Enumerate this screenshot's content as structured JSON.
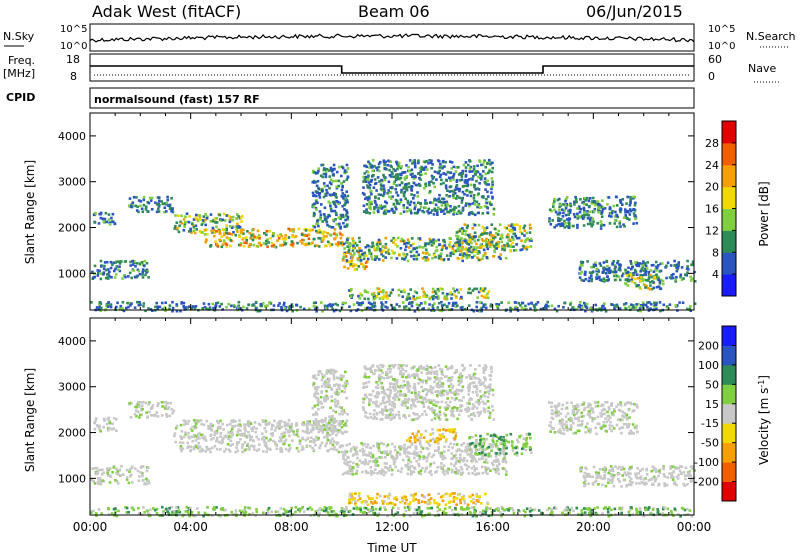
{
  "header": {
    "station": "Adak West (fitACF)",
    "beam": "Beam 06",
    "date": "06/Jun/2015"
  },
  "panels": {
    "nsky": {
      "label": "N.Sky",
      "right_label": "N.Search",
      "ticks_left": [
        "10^5",
        "10^0"
      ],
      "ticks_right": [
        "10^5",
        "10^0"
      ]
    },
    "freq": {
      "label": "Freq.",
      "unit": "[MHz]",
      "right_label": "Nave",
      "ticks_left": [
        "18",
        "8"
      ],
      "ticks_right": [
        "60",
        "0"
      ],
      "freq_steps": [
        {
          "t0": 0,
          "t1": 10,
          "level": "high"
        },
        {
          "t0": 10,
          "t1": 18,
          "level": "low"
        },
        {
          "t0": 18,
          "t1": 24,
          "level": "high"
        }
      ]
    },
    "cpid": {
      "label": "CPID",
      "text": "normalsound (fast) 157 RF"
    }
  },
  "chart_data": [
    {
      "type": "heatmap",
      "panel": "power",
      "ylabel": "Slant Range [km]",
      "xlim": [
        0,
        24
      ],
      "ylim": [
        200,
        4500
      ],
      "yticks": [
        1000,
        2000,
        3000,
        4000
      ],
      "colorbar": {
        "label": "Power [dB]",
        "ticks": [
          4,
          8,
          12,
          16,
          20,
          24,
          28
        ],
        "range": [
          0,
          32
        ],
        "colors": [
          "#1a1aff",
          "#2a55c0",
          "#2e8b57",
          "#7fcf3f",
          "#f0d800",
          "#f5a000",
          "#f06000",
          "#e00000"
        ]
      },
      "echo_bands": [
        {
          "t0": 0.1,
          "t1": 1.0,
          "r0": 2050,
          "r1": 2350,
          "level": "low"
        },
        {
          "t0": 0.0,
          "t1": 2.3,
          "r0": 900,
          "r1": 1300,
          "level": "low"
        },
        {
          "t0": 1.5,
          "t1": 3.3,
          "r0": 2350,
          "r1": 2700,
          "level": "low"
        },
        {
          "t0": 3.3,
          "t1": 6.0,
          "r0": 1900,
          "r1": 2350,
          "level": "mid"
        },
        {
          "t0": 4.5,
          "t1": 10.0,
          "r0": 1600,
          "r1": 2000,
          "level": "high"
        },
        {
          "t0": 8.8,
          "t1": 10.2,
          "r0": 2000,
          "r1": 3400,
          "level": "low"
        },
        {
          "t0": 10.0,
          "t1": 11.0,
          "r0": 1100,
          "r1": 1500,
          "level": "high"
        },
        {
          "t0": 10.0,
          "t1": 16.5,
          "r0": 1300,
          "r1": 1800,
          "level": "mid"
        },
        {
          "t0": 10.8,
          "t1": 16.0,
          "r0": 2300,
          "r1": 3500,
          "level": "low"
        },
        {
          "t0": 14.5,
          "t1": 17.5,
          "r0": 1500,
          "r1": 2100,
          "level": "mid"
        },
        {
          "t0": 10.2,
          "t1": 15.8,
          "r0": 450,
          "r1": 700,
          "level": "mid"
        },
        {
          "t0": 18.2,
          "t1": 21.7,
          "r0": 2000,
          "r1": 2700,
          "level": "low"
        },
        {
          "t0": 19.4,
          "t1": 24.0,
          "r0": 850,
          "r1": 1300,
          "level": "low"
        },
        {
          "t0": 21.2,
          "t1": 22.8,
          "r0": 650,
          "r1": 1000,
          "level": "mid"
        },
        {
          "t0": 0.0,
          "t1": 24.0,
          "r0": 200,
          "r1": 400,
          "level": "low"
        }
      ]
    },
    {
      "type": "heatmap",
      "panel": "velocity",
      "ylabel": "Slant Range [km]",
      "xlabel": "Time UT",
      "xlim": [
        0,
        24
      ],
      "ylim": [
        200,
        4500
      ],
      "xticks": [
        "00:00",
        "04:00",
        "08:00",
        "12:00",
        "16:00",
        "20:00",
        "00:00"
      ],
      "yticks": [
        1000,
        2000,
        3000,
        4000
      ],
      "colorbar": {
        "label": "Velocity [m s",
        "label_sup": "-1",
        "label_end": "]",
        "ticks": [
          200,
          100,
          50,
          15,
          -15,
          -50,
          -100,
          -200
        ],
        "colors": [
          "#1a1aff",
          "#2a55c0",
          "#2e8b57",
          "#7fcf3f",
          "#c8c8c8",
          "#f0d800",
          "#f5a000",
          "#f06000",
          "#e00000"
        ]
      },
      "echo_bands": [
        {
          "t0": 0.1,
          "t1": 1.0,
          "r0": 2050,
          "r1": 2350,
          "level": "neutral"
        },
        {
          "t0": 0.0,
          "t1": 2.3,
          "r0": 900,
          "r1": 1300,
          "level": "neutral"
        },
        {
          "t0": 1.5,
          "t1": 3.3,
          "r0": 2350,
          "r1": 2700,
          "level": "neutral"
        },
        {
          "t0": 3.3,
          "t1": 10.0,
          "r0": 1600,
          "r1": 2300,
          "level": "neutral"
        },
        {
          "t0": 8.8,
          "t1": 10.2,
          "r0": 2000,
          "r1": 3400,
          "level": "neutral"
        },
        {
          "t0": 10.0,
          "t1": 16.5,
          "r0": 1100,
          "r1": 1800,
          "level": "neutral"
        },
        {
          "t0": 12.5,
          "t1": 14.5,
          "r0": 1800,
          "r1": 2100,
          "level": "away"
        },
        {
          "t0": 15.0,
          "t1": 17.5,
          "r0": 1500,
          "r1": 2000,
          "level": "toward"
        },
        {
          "t0": 10.8,
          "t1": 16.0,
          "r0": 2300,
          "r1": 3500,
          "level": "neutral"
        },
        {
          "t0": 10.2,
          "t1": 15.8,
          "r0": 450,
          "r1": 700,
          "level": "away"
        },
        {
          "t0": 18.2,
          "t1": 21.7,
          "r0": 2000,
          "r1": 2700,
          "level": "neutral"
        },
        {
          "t0": 19.4,
          "t1": 24.0,
          "r0": 850,
          "r1": 1300,
          "level": "neutral"
        },
        {
          "t0": 0.0,
          "t1": 24.0,
          "r0": 200,
          "r1": 400,
          "level": "toward"
        }
      ]
    }
  ]
}
